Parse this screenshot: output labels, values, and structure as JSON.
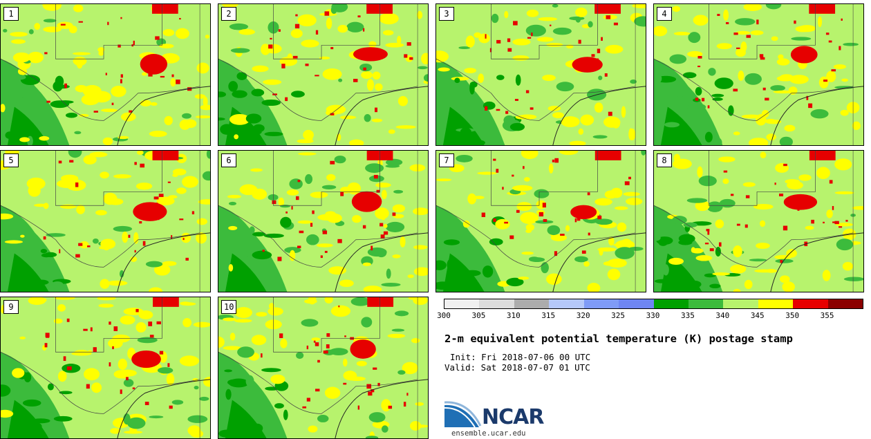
{
  "panels": [
    {
      "label": "1"
    },
    {
      "label": "2"
    },
    {
      "label": "3"
    },
    {
      "label": "4"
    },
    {
      "label": "5"
    },
    {
      "label": "6"
    },
    {
      "label": "7"
    },
    {
      "label": "8"
    },
    {
      "label": "9"
    },
    {
      "label": "10"
    }
  ],
  "colorbar": {
    "ticks": [
      "300",
      "305",
      "310",
      "315",
      "320",
      "325",
      "330",
      "335",
      "340",
      "345",
      "350",
      "355"
    ],
    "colors": [
      "#f0f0f0",
      "#dcdcdc",
      "#acacac",
      "#b5c8f9",
      "#7f9bf7",
      "#6f86f3",
      "#00a000",
      "#3cbb3c",
      "#b7f36d",
      "#ffff00",
      "#e60000",
      "#8b0000"
    ]
  },
  "title": "2-m equivalent potential temperature (K) postage stamp",
  "init": "Init: Fri 2018-07-06 00 UTC",
  "valid": "Valid: Sat 2018-07-07 01 UTC",
  "logo": {
    "name": "NCAR",
    "url": "ensemble.ucar.edu"
  },
  "field_colors": {
    "base": "#b7f36d",
    "dark_green": "#00a000",
    "green": "#3cbb3c",
    "yellow": "#ffff00",
    "red": "#e60000",
    "blue": "#6f86f3"
  }
}
